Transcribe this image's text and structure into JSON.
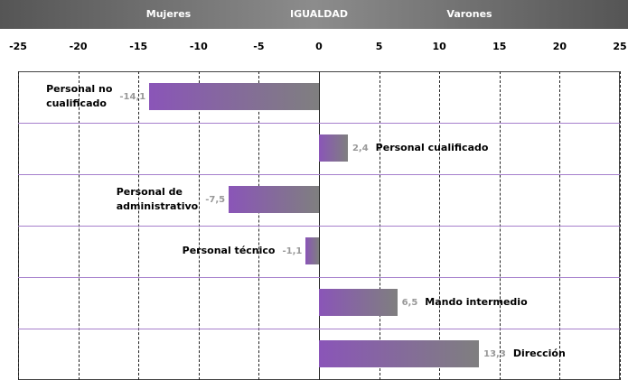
{
  "chart_data": {
    "type": "bar",
    "orientation": "horizontal",
    "header_labels": [
      {
        "text": "Mujeres",
        "value": -12.5
      },
      {
        "text": "IGUALDAD",
        "value": 0
      },
      {
        "text": "Varones",
        "value": 12.5
      }
    ],
    "categories": [
      "Personal no\ncualificado",
      "Personal cualificado",
      "Personal de\nadministrativo",
      "Personal técnico",
      "Mando intermedio",
      "Dirección"
    ],
    "values": [
      -14.1,
      2.4,
      -7.5,
      -1.1,
      6.5,
      13.3
    ],
    "value_labels": [
      "-14,1",
      "2,4",
      "-7,5",
      "-1,1",
      "6,5",
      "13,3"
    ],
    "colors": [
      "#8a55b8",
      "#7f7f7f"
    ],
    "xlim": [
      -25,
      25
    ],
    "xticks": [
      -25,
      -20,
      -15,
      -10,
      -5,
      0,
      5,
      10,
      15,
      20,
      25
    ],
    "grid": true
  }
}
